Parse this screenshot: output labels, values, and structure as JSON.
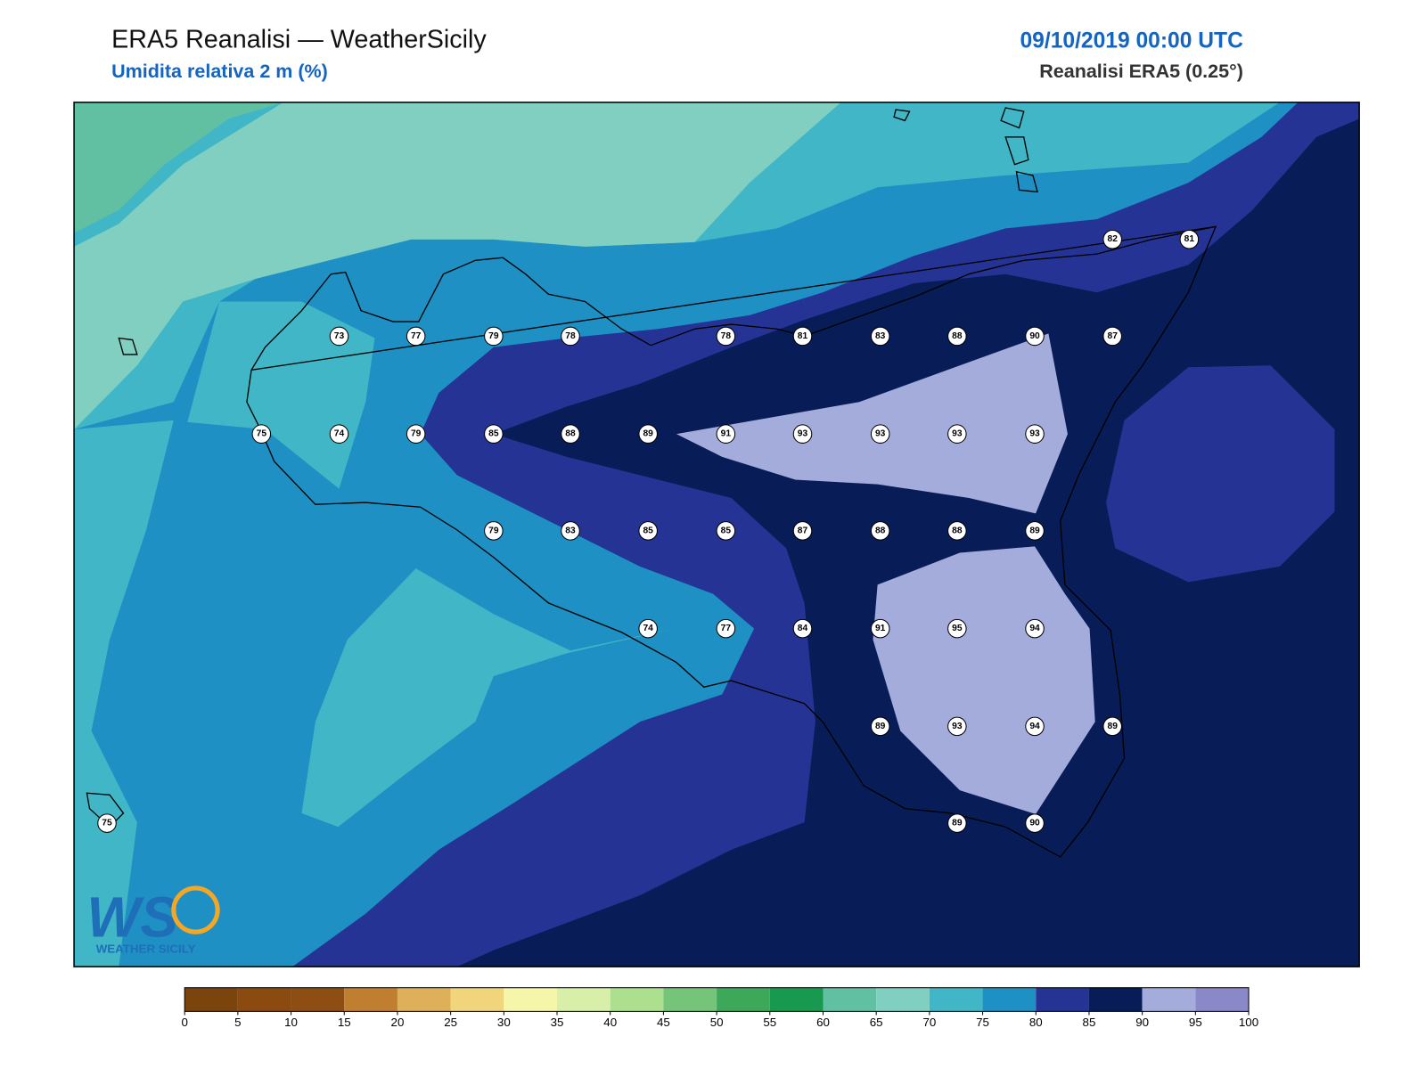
{
  "header": {
    "title": "ERA5 Reanalisi — WeatherSicily",
    "subtitle": "Umidita relativa 2 m (%)",
    "datetime": "09/10/2019 00:00 UTC",
    "source": "Reanalisi ERA5 (0.25°)"
  },
  "stations": [
    82,
    81,
    73,
    77,
    79,
    78,
    78,
    81,
    83,
    88,
    90,
    87,
    75,
    74,
    79,
    85,
    88,
    89,
    91,
    93,
    93,
    93,
    93,
    79,
    83,
    85,
    85,
    87,
    88,
    88,
    89,
    74,
    77,
    84,
    91,
    95,
    94,
    89,
    93,
    94,
    89,
    75,
    89,
    90
  ],
  "colorbar": {
    "ticks": [
      0,
      5,
      10,
      15,
      20,
      25,
      30,
      35,
      40,
      45,
      50,
      55,
      60,
      65,
      70,
      75,
      80,
      85,
      90,
      95,
      100
    ],
    "colors": [
      "#7b440c",
      "#8a4a10",
      "#8e4d12",
      "#c07f30",
      "#dfb05a",
      "#f0d57c",
      "#f6f6aa",
      "#d8efaa",
      "#ace08e",
      "#75c47a",
      "#3ea85a",
      "#179a50",
      "#62c0a2",
      "#80cfc0",
      "#40b6c6",
      "#1e90c4",
      "#253494",
      "#081d58",
      "#a4acdc",
      "#8a88c8"
    ]
  },
  "logo": {
    "text": "WEATHER SICILY"
  }
}
